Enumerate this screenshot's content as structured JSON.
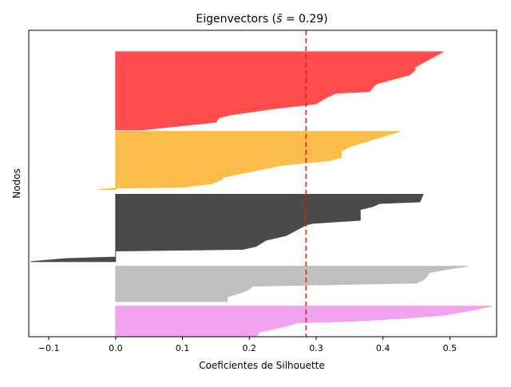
{
  "chart_data": {
    "type": "area",
    "title": "Eigenvectors ($\\bar{s}$ = 0.29)",
    "title_parts": {
      "prefix": "Eigenvectors (",
      "symbol": "s̄",
      "suffix": " = 0.29)"
    },
    "xlabel": "Coeficientes de Silhouette",
    "ylabel": "Nodos",
    "xlim": [
      -0.13,
      0.57
    ],
    "ylim": [
      0,
      100
    ],
    "xticks": [
      -0.1,
      0.0,
      0.1,
      0.2,
      0.3,
      0.4,
      0.5
    ],
    "xtick_labels": [
      "−0.1",
      "0.0",
      "0.1",
      "0.2",
      "0.3",
      "0.4",
      "0.5"
    ],
    "yticks": [],
    "grid": false,
    "reference_line": {
      "x": 0.285,
      "color": "#e41a1c",
      "style": "dashed"
    },
    "series": [
      {
        "color": "#e8e8e8",
        "fill_color": "#f2a3f0",
        "points": [
          [
            0.21,
            0
          ],
          [
            0.215,
            1.5
          ],
          [
            0.23,
            2.2
          ],
          [
            0.25,
            3.2
          ],
          [
            0.265,
            4.0
          ],
          [
            0.27,
            4.5
          ],
          [
            0.35,
            5.0
          ],
          [
            0.43,
            6.0
          ],
          [
            0.49,
            7.0
          ],
          [
            0.53,
            8.5
          ],
          [
            0.563,
            10.0
          ]
        ]
      },
      {
        "color": "#bfbfbf",
        "fill_color": "#bfbfbf",
        "points": [
          [
            0.167,
            11.5
          ],
          [
            0.167,
            13.0
          ],
          [
            0.19,
            14.5
          ],
          [
            0.2,
            15.5
          ],
          [
            0.205,
            16.5
          ],
          [
            0.45,
            17.5
          ],
          [
            0.46,
            18.5
          ],
          [
            0.465,
            19.5
          ],
          [
            0.47,
            21.0
          ],
          [
            0.51,
            22.5
          ],
          [
            0.527,
            23.0
          ]
        ]
      },
      {
        "color": "#3a3a3a",
        "fill_color": "#4a4a4a",
        "points": [
          [
            -0.127,
            24.5
          ],
          [
            -0.075,
            25.5
          ],
          [
            0.0,
            26.0
          ],
          [
            0.0,
            28.0
          ],
          [
            0.19,
            28.5
          ],
          [
            0.21,
            29.5
          ],
          [
            0.225,
            31.5
          ],
          [
            0.255,
            33.0
          ],
          [
            0.285,
            36.5
          ],
          [
            0.295,
            37.0
          ],
          [
            0.366,
            38.0
          ],
          [
            0.366,
            41.5
          ],
          [
            0.385,
            42.5
          ],
          [
            0.395,
            43.5
          ],
          [
            0.455,
            44.0
          ],
          [
            0.46,
            46.5
          ]
        ]
      },
      {
        "color": "#ffb833",
        "fill_color": "#fcbc4a",
        "points": [
          [
            -0.025,
            48.0
          ],
          [
            0.0,
            48.5
          ],
          [
            0.1,
            48.8
          ],
          [
            0.145,
            50.0
          ],
          [
            0.16,
            51.5
          ],
          [
            0.16,
            52.0
          ],
          [
            0.25,
            56.0
          ],
          [
            0.32,
            57.5
          ],
          [
            0.338,
            58.5
          ],
          [
            0.338,
            60.5
          ],
          [
            0.345,
            61.5
          ],
          [
            0.35,
            62.0
          ],
          [
            0.425,
            67.0
          ]
        ]
      },
      {
        "color": "#ff4f4f",
        "fill_color": "#ff4d4d",
        "points": [
          [
            0.04,
            67.5
          ],
          [
            0.15,
            70.0
          ],
          [
            0.155,
            71.5
          ],
          [
            0.175,
            72.5
          ],
          [
            0.24,
            74.5
          ],
          [
            0.3,
            76.0
          ],
          [
            0.315,
            78.0
          ],
          [
            0.33,
            79.5
          ],
          [
            0.38,
            80.0
          ],
          [
            0.385,
            81.5
          ],
          [
            0.385,
            81.5
          ],
          [
            0.39,
            82.5
          ],
          [
            0.44,
            85.5
          ],
          [
            0.448,
            87.0
          ],
          [
            0.448,
            88.0
          ],
          [
            0.49,
            93.0
          ]
        ]
      }
    ]
  }
}
